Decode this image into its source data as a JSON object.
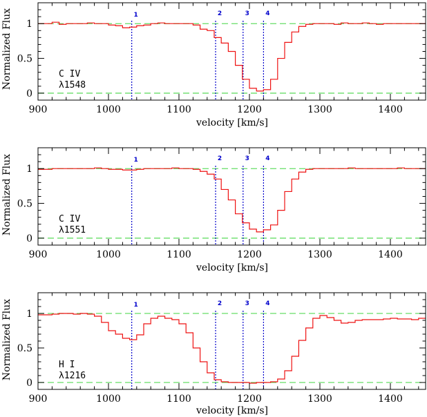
{
  "chart_data": [
    {
      "type": "line",
      "ion": "C IV",
      "wavelength": "λ1548",
      "xlabel": "velocity [km/s]",
      "ylabel": "Normalized Flux",
      "xlim": [
        900,
        1450
      ],
      "ylim": [
        -0.1,
        1.3
      ],
      "x_ticks": [
        900,
        1000,
        1100,
        1200,
        1300,
        1400
      ],
      "y_ticks": [
        0,
        0.5,
        1
      ],
      "y_tick_labels": [
        "0",
        "0.5",
        "1"
      ],
      "reference_lines": [
        0,
        1
      ],
      "markers": [
        {
          "label": "1",
          "x": 1033
        },
        {
          "label": "2",
          "x": 1152
        },
        {
          "label": "3",
          "x": 1191
        },
        {
          "label": "4",
          "x": 1220
        }
      ],
      "step_width": 10,
      "x": [
        900,
        910,
        920,
        930,
        940,
        950,
        960,
        970,
        980,
        990,
        1000,
        1010,
        1020,
        1030,
        1040,
        1050,
        1060,
        1070,
        1080,
        1090,
        1100,
        1110,
        1120,
        1130,
        1140,
        1150,
        1160,
        1170,
        1180,
        1190,
        1200,
        1210,
        1220,
        1230,
        1240,
        1250,
        1260,
        1270,
        1280,
        1290,
        1300,
        1310,
        1320,
        1330,
        1340,
        1350,
        1360,
        1370,
        1380,
        1390,
        1400,
        1410,
        1420,
        1430,
        1440
      ],
      "y": [
        1.0,
        1.0,
        1.02,
        0.99,
        1.0,
        1.0,
        1.0,
        1.01,
        1.0,
        1.0,
        0.98,
        0.97,
        0.94,
        0.95,
        0.97,
        0.98,
        1.0,
        1.01,
        1.0,
        1.0,
        1.0,
        1.0,
        0.98,
        0.92,
        0.9,
        0.8,
        0.72,
        0.6,
        0.4,
        0.2,
        0.07,
        0.03,
        0.05,
        0.2,
        0.5,
        0.73,
        0.88,
        0.96,
        0.99,
        1.0,
        1.0,
        1.0,
        0.99,
        1.01,
        1.0,
        1.0,
        1.01,
        1.0,
        0.99,
        1.0,
        1.0,
        1.0,
        1.0,
        1.0,
        1.0
      ]
    },
    {
      "type": "line",
      "ion": "C IV",
      "wavelength": "λ1551",
      "xlabel": "velocity [km/s]",
      "ylabel": "Normalized Flux",
      "xlim": [
        900,
        1450
      ],
      "ylim": [
        -0.1,
        1.3
      ],
      "x_ticks": [
        900,
        1000,
        1100,
        1200,
        1300,
        1400
      ],
      "y_ticks": [
        0,
        0.5,
        1
      ],
      "y_tick_labels": [
        "0",
        "0.5",
        "1"
      ],
      "reference_lines": [
        0,
        1
      ],
      "markers": [
        {
          "label": "1",
          "x": 1033
        },
        {
          "label": "2",
          "x": 1152
        },
        {
          "label": "3",
          "x": 1191
        },
        {
          "label": "4",
          "x": 1220
        }
      ],
      "step_width": 10,
      "x": [
        900,
        910,
        920,
        930,
        940,
        950,
        960,
        970,
        980,
        990,
        1000,
        1010,
        1020,
        1030,
        1040,
        1050,
        1060,
        1070,
        1080,
        1090,
        1100,
        1110,
        1120,
        1130,
        1140,
        1150,
        1160,
        1170,
        1180,
        1190,
        1200,
        1210,
        1220,
        1230,
        1240,
        1250,
        1260,
        1270,
        1280,
        1290,
        1300,
        1310,
        1320,
        1330,
        1340,
        1350,
        1360,
        1370,
        1380,
        1390,
        1400,
        1410,
        1420,
        1430,
        1440
      ],
      "y": [
        0.99,
        0.99,
        1.0,
        1.0,
        1.0,
        1.0,
        1.0,
        1.0,
        1.01,
        1.0,
        0.99,
        0.99,
        0.98,
        0.98,
        0.99,
        1.0,
        1.0,
        1.0,
        1.0,
        1.01,
        1.0,
        1.0,
        0.99,
        0.96,
        0.92,
        0.85,
        0.7,
        0.55,
        0.35,
        0.22,
        0.13,
        0.09,
        0.12,
        0.19,
        0.4,
        0.67,
        0.85,
        0.95,
        0.99,
        1.0,
        1.0,
        1.0,
        1.0,
        1.0,
        1.01,
        1.0,
        1.0,
        1.0,
        1.0,
        1.0,
        1.0,
        1.01,
        1.0,
        1.0,
        1.0
      ]
    },
    {
      "type": "line",
      "ion": "H I",
      "wavelength": "λ1216",
      "xlabel": "velocity [km/s]",
      "ylabel": "Normalized Flux",
      "xlim": [
        900,
        1450
      ],
      "ylim": [
        -0.1,
        1.3
      ],
      "x_ticks": [
        900,
        1000,
        1100,
        1200,
        1300,
        1400
      ],
      "y_ticks": [
        0,
        0.5,
        1
      ],
      "y_tick_labels": [
        "0",
        "0.5",
        "1"
      ],
      "reference_lines": [
        0,
        1
      ],
      "markers": [
        {
          "label": "1",
          "x": 1033
        },
        {
          "label": "2",
          "x": 1152
        },
        {
          "label": "3",
          "x": 1191
        },
        {
          "label": "4",
          "x": 1220
        }
      ],
      "step_width": 10,
      "x": [
        900,
        910,
        920,
        930,
        940,
        950,
        960,
        970,
        980,
        990,
        1000,
        1010,
        1020,
        1030,
        1040,
        1050,
        1060,
        1070,
        1080,
        1090,
        1100,
        1110,
        1120,
        1130,
        1140,
        1150,
        1160,
        1170,
        1180,
        1190,
        1200,
        1210,
        1220,
        1230,
        1240,
        1250,
        1260,
        1270,
        1280,
        1290,
        1300,
        1310,
        1320,
        1330,
        1340,
        1350,
        1360,
        1370,
        1380,
        1390,
        1400,
        1410,
        1420,
        1430,
        1440
      ],
      "y": [
        0.98,
        0.98,
        0.99,
        1.0,
        1.0,
        0.99,
        1.0,
        0.99,
        0.96,
        0.87,
        0.75,
        0.7,
        0.64,
        0.62,
        0.69,
        0.85,
        0.93,
        0.96,
        0.93,
        0.91,
        0.85,
        0.72,
        0.5,
        0.3,
        0.14,
        0.04,
        0.01,
        0.0,
        0.0,
        0.0,
        -0.01,
        0.0,
        0.0,
        0.01,
        0.05,
        0.17,
        0.38,
        0.61,
        0.79,
        0.93,
        0.97,
        0.94,
        0.9,
        0.86,
        0.87,
        0.9,
        0.91,
        0.91,
        0.91,
        0.92,
        0.93,
        0.92,
        0.92,
        0.91,
        0.93
      ]
    }
  ]
}
